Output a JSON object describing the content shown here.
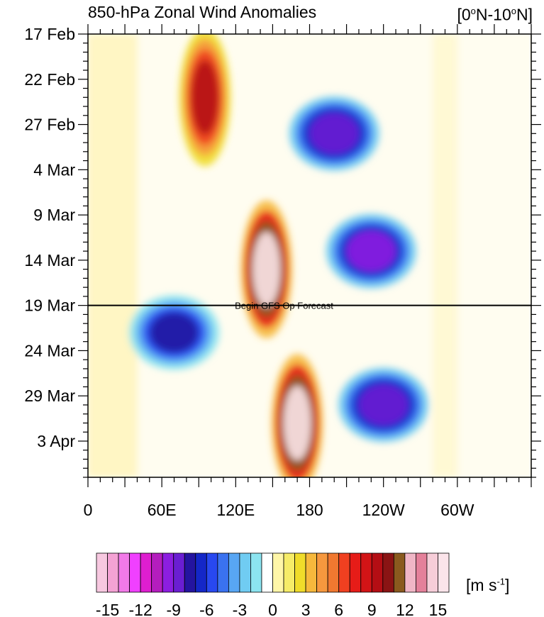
{
  "title_left": "850-hPa Zonal Wind Anomalies",
  "title_right_pre": "[0",
  "title_right_deg1": "o",
  "title_right_mid": "N-10",
  "title_right_deg2": "o",
  "title_right_post": "N]",
  "units_pre": "[m s",
  "units_sup": "-1",
  "units_post": "]",
  "forecast_label": "Begin GFS Op Forecast",
  "chart_data": {
    "type": "heatmap",
    "title": "850-hPa Zonal Wind Anomalies",
    "region": "[0oN-10oN]",
    "x_axis": {
      "quantity": "longitude",
      "ticks": [
        "0",
        "60E",
        "120E",
        "180",
        "120W",
        "60W"
      ],
      "range": [
        "0",
        "360"
      ]
    },
    "y_axis": {
      "quantity": "date",
      "ticks": [
        "17 Feb",
        "22 Feb",
        "27 Feb",
        "4 Mar",
        "9 Mar",
        "14 Mar",
        "19 Mar",
        "24 Mar",
        "29 Mar",
        "3 Apr"
      ],
      "inverted": true
    },
    "forecast_start": "19 Mar",
    "colorbar": {
      "units": "m s-1",
      "tick_labels": [
        "-15",
        "-12",
        "-9",
        "-6",
        "-3",
        "0",
        "3",
        "6",
        "9",
        "12",
        "15"
      ],
      "colors": [
        "#f7c8e0",
        "#f4a2d4",
        "#f27ae8",
        "#f040ff",
        "#de1ed0",
        "#b41dbe",
        "#8c1ee0",
        "#6a1ed2",
        "#2414a0",
        "#1427c8",
        "#2848f0",
        "#3a72f0",
        "#58a6f4",
        "#70ccf2",
        "#8ce4f0",
        "#ffffff",
        "#fff6a8",
        "#f6ec68",
        "#f0dc2a",
        "#f6b83c",
        "#f6983e",
        "#f07830",
        "#f04020",
        "#e61c18",
        "#d21416",
        "#b40e14",
        "#8a1414",
        "#8a5a1e",
        "#f0b6c6",
        "#e4809a",
        "#f6cdd8",
        "#fbe4ea"
      ],
      "max_arrow_color": "#fdf0f3",
      "min_arrow_color": "#f7c8e0"
    },
    "features": [
      {
        "label": "westerly anomaly",
        "sign": "positive",
        "max_value": 15,
        "lon": 145,
        "date": "15 Mar"
      },
      {
        "label": "westerly anomaly",
        "sign": "positive",
        "max_value": 15,
        "lon": 170,
        "date": "1 Apr"
      },
      {
        "label": "westerly anomaly",
        "sign": "positive",
        "max_value": 9,
        "lon": 95,
        "date": "24 Feb"
      },
      {
        "label": "easterly anomaly",
        "sign": "negative",
        "max_value": -9,
        "lon": 230,
        "date": "13 Mar"
      },
      {
        "label": "easterly anomaly",
        "sign": "negative",
        "max_value": -8,
        "lon": 200,
        "date": "28 Feb"
      },
      {
        "label": "easterly anomaly",
        "sign": "negative",
        "max_value": -8,
        "lon": 240,
        "date": "30 Mar"
      },
      {
        "label": "easterly anomaly",
        "sign": "negative",
        "max_value": -7,
        "lon": 70,
        "date": "22 Mar"
      }
    ]
  }
}
